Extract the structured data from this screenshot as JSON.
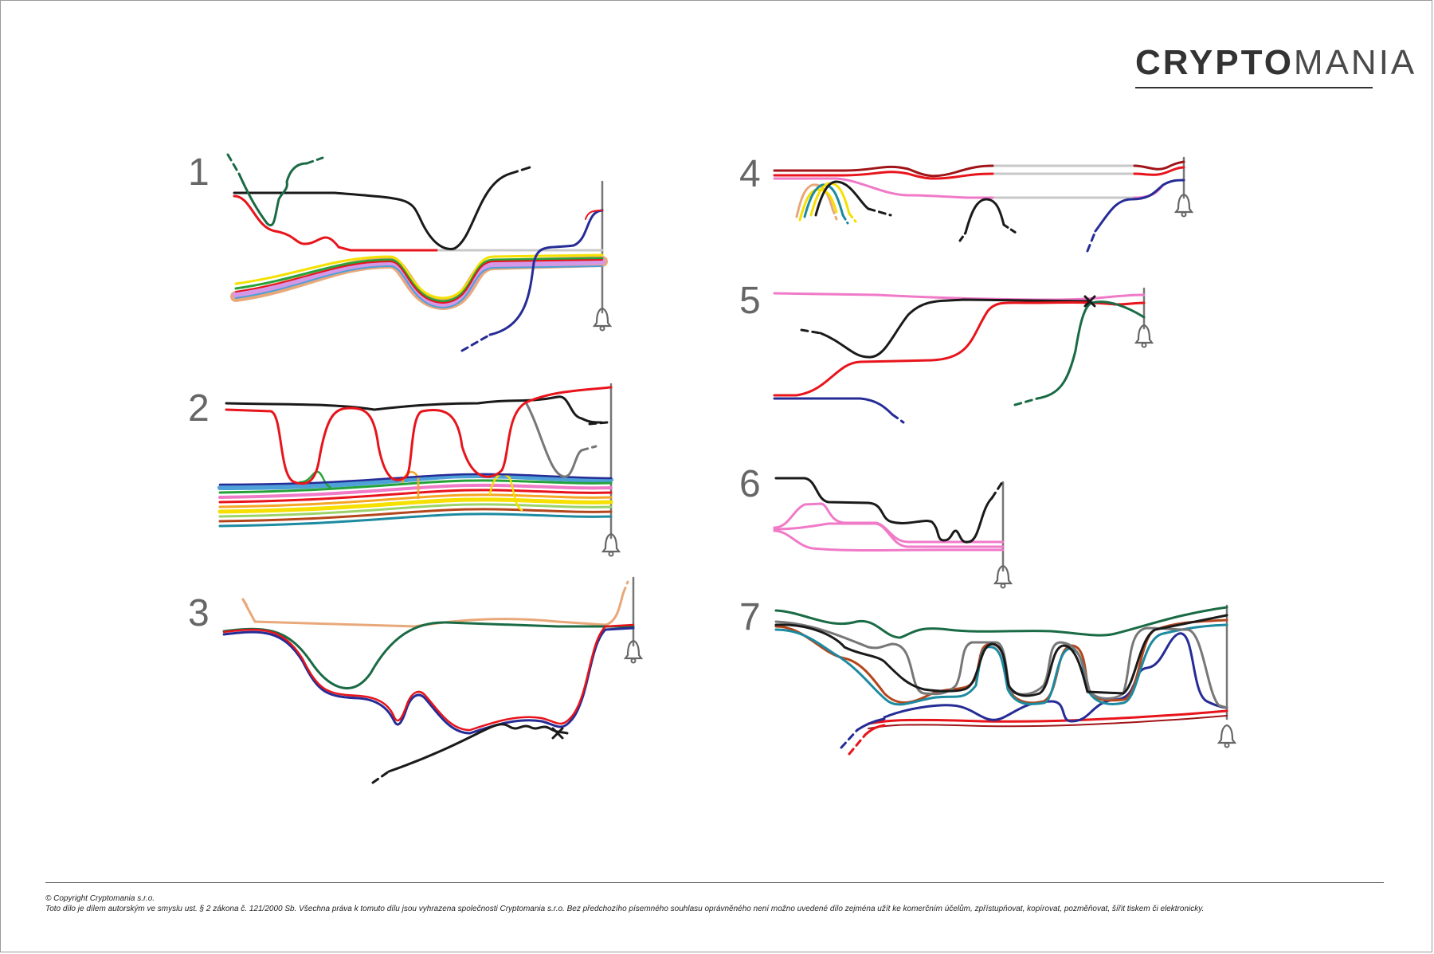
{
  "brand": {
    "logo_bold": "CRYPTO",
    "logo_light": "MANIA"
  },
  "panels": [
    {
      "number": "1"
    },
    {
      "number": "2"
    },
    {
      "number": "3"
    },
    {
      "number": "4"
    },
    {
      "number": "5"
    },
    {
      "number": "6"
    },
    {
      "number": "7"
    }
  ],
  "footer": {
    "copyright": "© Copyright Cryptomania s.r.o.",
    "notice": "Toto dílo je dílem autorským ve smyslu ust. § 2 zákona č. 121/2000 Sb. Všechna práva k tomuto dílu jsou vyhrazena společnosti Cryptomania s.r.o. Bez předchozího písemného souhlasu oprávněného není možno uvedené dílo zejména užít ke komerčním účelům, zpřístupňovat, kopírovat, pozměňovat, šířit tiskem či elektronicky."
  },
  "colors": {
    "red": "#e8141b",
    "black": "#1a1a1a",
    "gray": "#777777",
    "light_gray": "#c8c8c8",
    "dark_green": "#1a6b45",
    "navy": "#262c96",
    "pink": "#f07ac8",
    "orange": "#e9a87a",
    "dark_red": "#a01418",
    "teal": "#1c8aa0",
    "rust": "#b4461c",
    "yellow": "#f5e000"
  },
  "icons": {
    "end_marker": "bell-icon",
    "cross": "cross-icon"
  }
}
